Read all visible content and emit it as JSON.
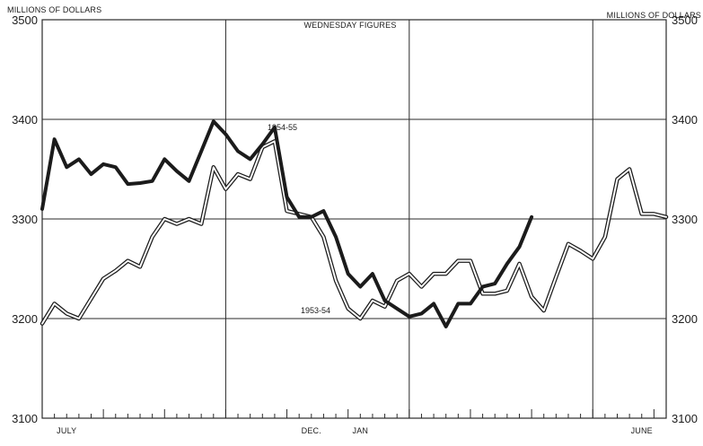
{
  "header": {
    "left_axis_title": "MILLIONS OF DOLLARS",
    "right_axis_title": "MILLIONS OF DOLLARS",
    "top_center_label": "WEDNESDAY FIGURES"
  },
  "colors": {
    "ink": "#1b1b1b",
    "paper": "#ffffff"
  },
  "chart_data": {
    "type": "line",
    "title": "WEDNESDAY FIGURES",
    "xlabel": "",
    "ylabel": "MILLIONS OF DOLLARS",
    "ylim": [
      3100,
      3500
    ],
    "y_ticks": [
      3100,
      3200,
      3300,
      3400,
      3500
    ],
    "y_tick_labels_left": [
      "3100",
      "3200",
      "3300",
      "3400",
      "3500"
    ],
    "y_tick_labels_right": [
      "3100",
      "3200",
      "3300",
      "3400",
      "3500"
    ],
    "x_range": [
      1,
      52
    ],
    "x_tick_labels": [
      {
        "label": "JULY",
        "x": 3
      },
      {
        "label": "DEC.",
        "x": 23
      },
      {
        "label": "JAN",
        "x": 27
      },
      {
        "label": "JUNE",
        "x": 50
      }
    ],
    "grid": "on",
    "legend": "none",
    "series": [
      {
        "name": "1953-54",
        "values": [
          3195,
          3215,
          3205,
          3200,
          3220,
          3240,
          3248,
          3258,
          3252,
          3282,
          3300,
          3295,
          3300,
          3295,
          3352,
          3330,
          3345,
          3340,
          3372,
          3378,
          3308,
          3305,
          3302,
          3282,
          3238,
          3210,
          3200,
          3218,
          3212,
          3238,
          3245,
          3232,
          3245,
          3245,
          3258,
          3258,
          3225,
          3225,
          3228,
          3255,
          3222,
          3208,
          3242,
          3275,
          3268,
          3260,
          3282,
          3340,
          3350,
          3305,
          3305,
          3302
        ]
      },
      {
        "name": "1954-55",
        "values": [
          3310,
          3380,
          3352,
          3360,
          3345,
          3355,
          3352,
          3335,
          3336,
          3338,
          3360,
          3348,
          3338,
          3368,
          3398,
          3385,
          3368,
          3360,
          3375,
          3392,
          3322,
          3302,
          3302,
          3308,
          3282,
          3245,
          3232,
          3245,
          3218,
          3210,
          3202,
          3205,
          3215,
          3192,
          3215,
          3215,
          3232,
          3235,
          3255,
          3272,
          3302
        ]
      }
    ]
  }
}
